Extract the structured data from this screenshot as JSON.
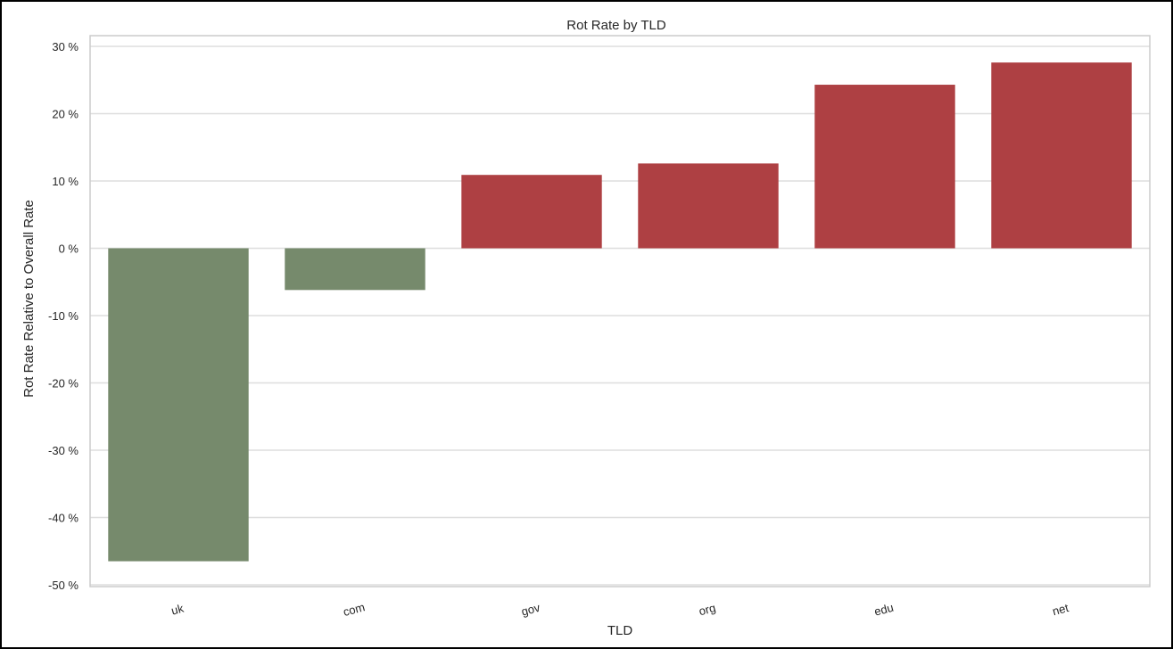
{
  "chart_data": {
    "type": "bar",
    "title": "Rot Rate by TLD",
    "xlabel": "TLD",
    "ylabel": "Rot Rate Relative to Overall Rate",
    "categories": [
      "uk",
      "com",
      "gov",
      "org",
      "edu",
      "net"
    ],
    "values": [
      -46.5,
      -6.2,
      10.9,
      12.6,
      24.3,
      27.6
    ],
    "value_unit": "%",
    "ylim": [
      -50,
      30
    ],
    "yticks": [
      30,
      20,
      10,
      0,
      -10,
      -20,
      -30,
      -40,
      -50
    ],
    "ytick_labels": [
      "30 %",
      "20 %",
      "10 %",
      "0 %",
      "-10 %",
      "-20 %",
      "-30 %",
      "-40 %",
      "-50 %"
    ],
    "grid": true,
    "legend": "none",
    "colors": {
      "negative": "#768a6c",
      "positive": "#ae4043",
      "grid": "#dedede",
      "axes_frame": "#cccccc"
    }
  }
}
